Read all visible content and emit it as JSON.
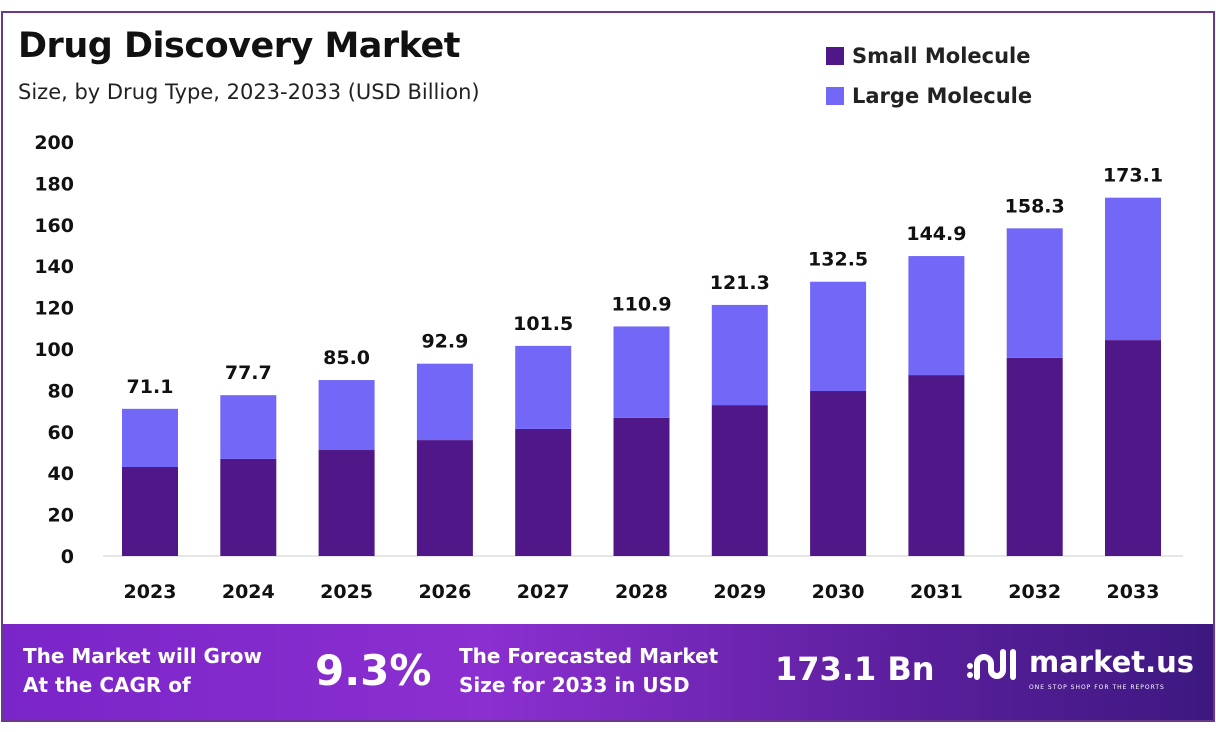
{
  "chart_data": {
    "type": "bar",
    "stacked": true,
    "title": "Drug Discovery Market",
    "subtitle": "Size, by Drug Type, 2023-2033 (USD Billion)",
    "xlabel": "",
    "ylabel": "",
    "ylim": [
      0,
      200
    ],
    "yticks": [
      0,
      20,
      40,
      60,
      80,
      100,
      120,
      140,
      160,
      180,
      200
    ],
    "categories": [
      "2023",
      "2024",
      "2025",
      "2026",
      "2027",
      "2028",
      "2029",
      "2030",
      "2031",
      "2032",
      "2033"
    ],
    "totals": [
      "71.1",
      "77.7",
      "85.0",
      "92.9",
      "101.5",
      "110.9",
      "121.3",
      "132.5",
      "144.9",
      "158.3",
      "173.1"
    ],
    "series": [
      {
        "name": "Small Molecule",
        "color": "#4f1787",
        "values": [
          43.0,
          46.9,
          51.2,
          56.0,
          61.4,
          66.7,
          72.9,
          79.7,
          87.4,
          95.7,
          104.3
        ]
      },
      {
        "name": "Large Molecule",
        "color": "#7367f8",
        "values": [
          28.1,
          30.8,
          33.8,
          36.9,
          40.1,
          44.2,
          48.4,
          52.8,
          57.5,
          62.6,
          68.8
        ]
      }
    ],
    "legend_position": "top-right",
    "grid": false
  },
  "footer": {
    "cagr_label": [
      "The Market will Grow",
      "At the CAGR of"
    ],
    "cagr_value": "9.3%",
    "forecast_label": [
      "The Forecasted Market",
      "Size for 2033 in USD"
    ],
    "forecast_value": "173.1 Bn",
    "brand": "market.us",
    "tagline": "ONE STOP SHOP FOR THE REPORTS"
  }
}
